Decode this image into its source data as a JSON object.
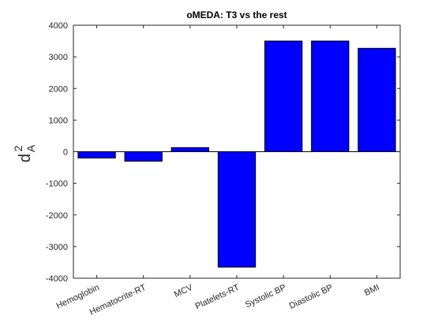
{
  "chart_data": {
    "type": "bar",
    "title": "oMEDA: T3 vs the rest",
    "ylabel": "d",
    "ylabel_superscript": "2",
    "ylabel_subscript": "A",
    "xlabel": "",
    "categories": [
      "Hemoglobin",
      "Hematocrite-RT",
      "MCV",
      "Platelets-RT",
      "Systolic BP",
      "Diastolic BP",
      "BMI"
    ],
    "values": [
      -200,
      -300,
      130,
      -3650,
      3500,
      3500,
      3270
    ],
    "ylim": [
      -4000,
      4000
    ],
    "yticks": [
      -4000,
      -3000,
      -2000,
      -1000,
      0,
      1000,
      2000,
      3000,
      4000
    ],
    "bar_color": "#0000ff",
    "grid": false,
    "legend": "none"
  }
}
